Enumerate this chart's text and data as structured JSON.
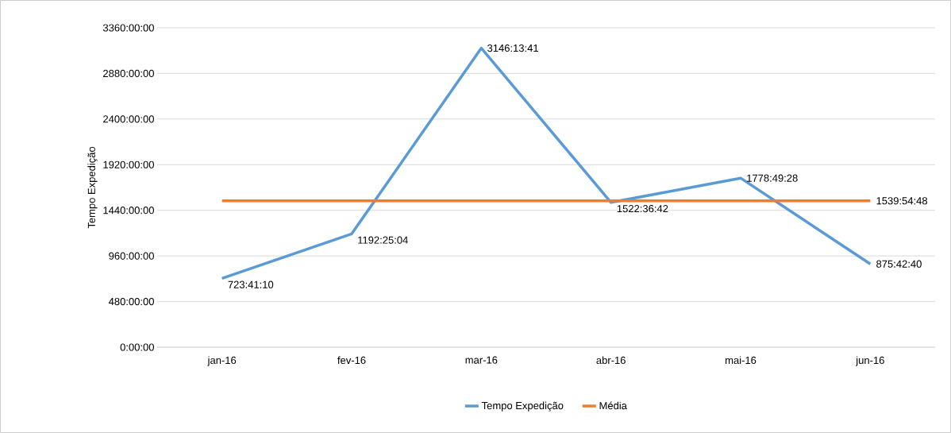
{
  "chart_data": {
    "type": "line",
    "ylabel": "Tempo Expedição",
    "categories": [
      "jan-16",
      "fev-16",
      "mar-16",
      "abr-16",
      "mai-16",
      "jun-16"
    ],
    "series": [
      {
        "name": "Tempo Expedição",
        "color": "#5b9bd5",
        "values": [
          723.686,
          1192.418,
          3146.228,
          1522.612,
          1778.824,
          875.711
        ],
        "value_labels": [
          "723:41:10",
          "1192:25:04",
          "3146:13:41",
          "1522:36:42",
          "1778:49:28",
          "875:42:40"
        ]
      },
      {
        "name": "Média",
        "color": "#ed7d31",
        "values": [
          1539.913,
          1539.913,
          1539.913,
          1539.913,
          1539.913,
          1539.913
        ],
        "value_labels": [
          null,
          null,
          null,
          null,
          null,
          "1539:54:48"
        ]
      }
    ],
    "ylim": [
      0,
      3360
    ],
    "yticks": [
      {
        "value": 0,
        "label": "0:00:00"
      },
      {
        "value": 480,
        "label": "480:00:00"
      },
      {
        "value": 960,
        "label": "960:00:00"
      },
      {
        "value": 1440,
        "label": "1440:00:00"
      },
      {
        "value": 1920,
        "label": "1920:00:00"
      },
      {
        "value": 2400,
        "label": "2400:00:00"
      },
      {
        "value": 2880,
        "label": "2880:00:00"
      },
      {
        "value": 3360,
        "label": "3360:00:00"
      }
    ],
    "grid": "y",
    "legend": "bottom",
    "marker": "none",
    "line_style": "solid"
  }
}
